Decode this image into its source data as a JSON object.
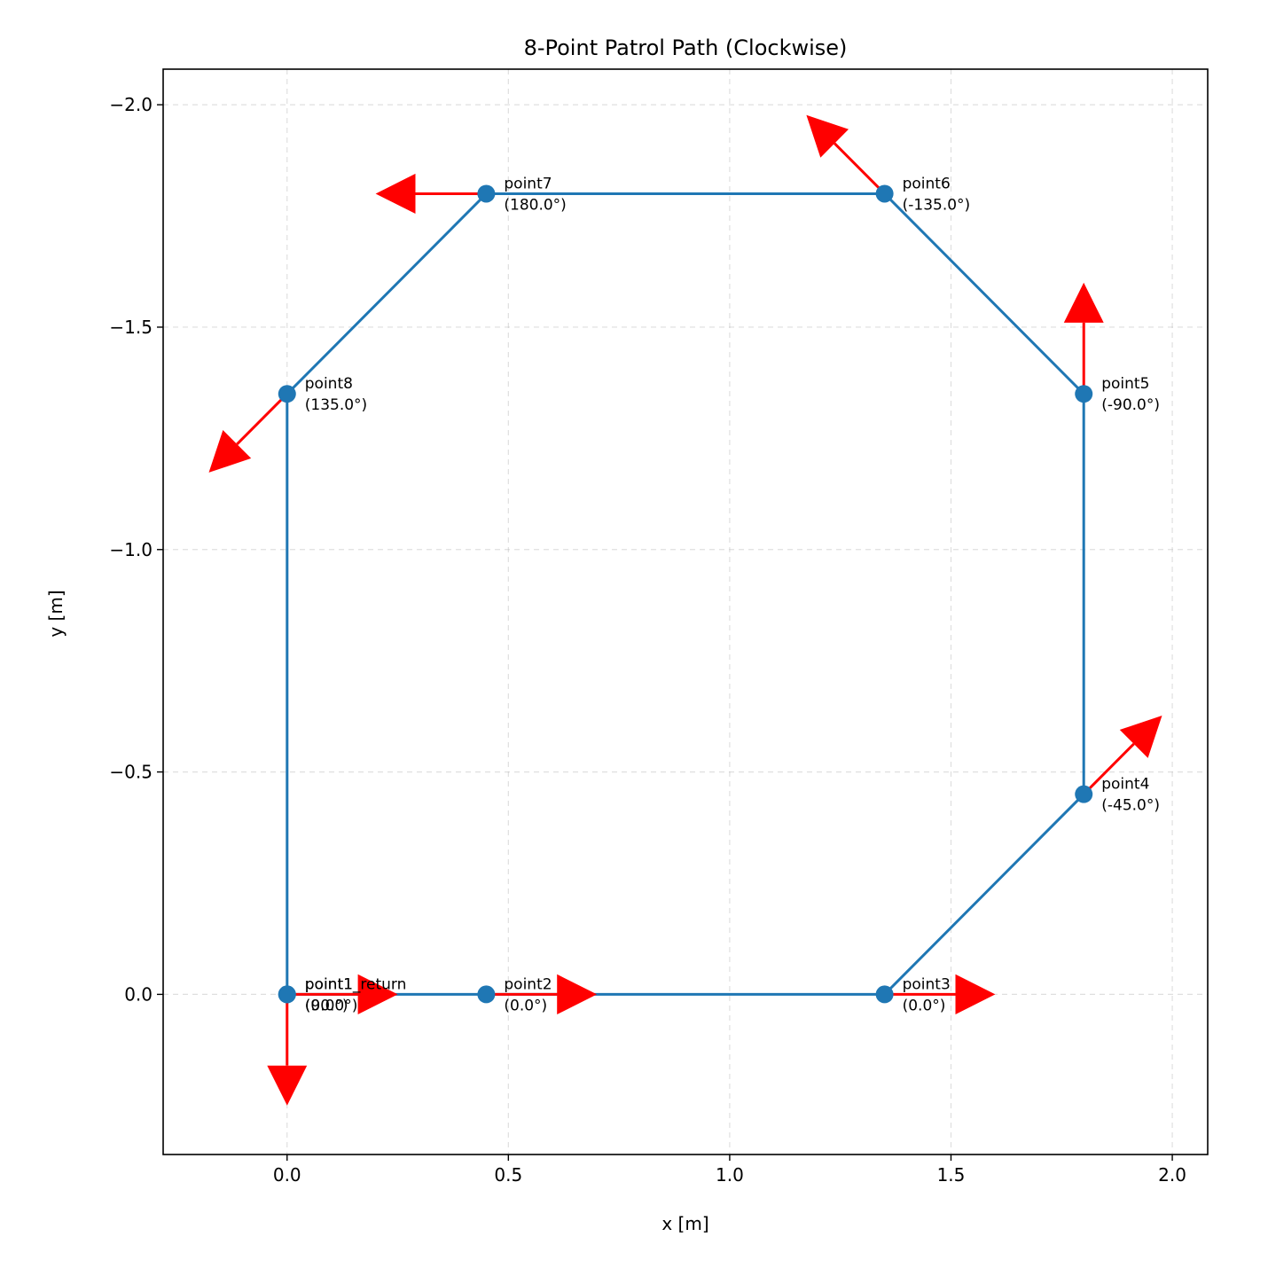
{
  "chart_data": {
    "type": "line",
    "title": "8-Point Patrol Path (Clockwise)",
    "xlabel": "x [m]",
    "ylabel": "y [m]",
    "xlim": [
      -0.28,
      2.08
    ],
    "ylim": [
      0.36,
      -2.08
    ],
    "y_inverted": true,
    "grid": true,
    "x_ticks": [
      0.0,
      0.5,
      1.0,
      1.5,
      2.0
    ],
    "x_tick_labels": [
      "0.0",
      "0.5",
      "1.0",
      "1.5",
      "2.0"
    ],
    "y_ticks": [
      -2.0,
      -1.5,
      -1.0,
      -0.5,
      0.0
    ],
    "y_tick_labels": [
      "−2.0",
      "−1.5",
      "−1.0",
      "−0.5",
      "0.0"
    ],
    "path": {
      "color": "#1f77b4",
      "x": [
        0.0,
        0.45,
        1.35,
        1.8,
        1.8,
        1.35,
        0.45,
        0.0,
        0.0
      ],
      "y": [
        0.0,
        0.0,
        0.0,
        -0.45,
        -1.35,
        -1.8,
        -1.8,
        -1.35,
        0.0
      ]
    },
    "arrow_color": "#ff0000",
    "points": [
      {
        "name": "point1",
        "x": 0.0,
        "y": 0.0,
        "yaw": 90.0,
        "label": "point1",
        "angle_label": "(90.0°)"
      },
      {
        "name": "point2",
        "x": 0.45,
        "y": 0.0,
        "yaw": 0.0,
        "label": "point2",
        "angle_label": "(0.0°)"
      },
      {
        "name": "point3",
        "x": 1.35,
        "y": 0.0,
        "yaw": 0.0,
        "label": "point3",
        "angle_label": "(0.0°)"
      },
      {
        "name": "point4",
        "x": 1.8,
        "y": -0.45,
        "yaw": -45.0,
        "label": "point4",
        "angle_label": "(-45.0°)"
      },
      {
        "name": "point5",
        "x": 1.8,
        "y": -1.35,
        "yaw": -90.0,
        "label": "point5",
        "angle_label": "(-90.0°)"
      },
      {
        "name": "point6",
        "x": 1.35,
        "y": -1.8,
        "yaw": -135.0,
        "label": "point6",
        "angle_label": "(-135.0°)"
      },
      {
        "name": "point7",
        "x": 0.45,
        "y": -1.8,
        "yaw": 180.0,
        "label": "point7",
        "angle_label": "(180.0°)"
      },
      {
        "name": "point8",
        "x": 0.0,
        "y": -1.35,
        "yaw": 135.0,
        "label": "point8",
        "angle_label": "(135.0°)"
      },
      {
        "name": "point1_return",
        "x": 0.0,
        "y": 0.0,
        "yaw": 0.0,
        "label": "point1_return",
        "angle_label": "(0.0°)"
      }
    ]
  }
}
